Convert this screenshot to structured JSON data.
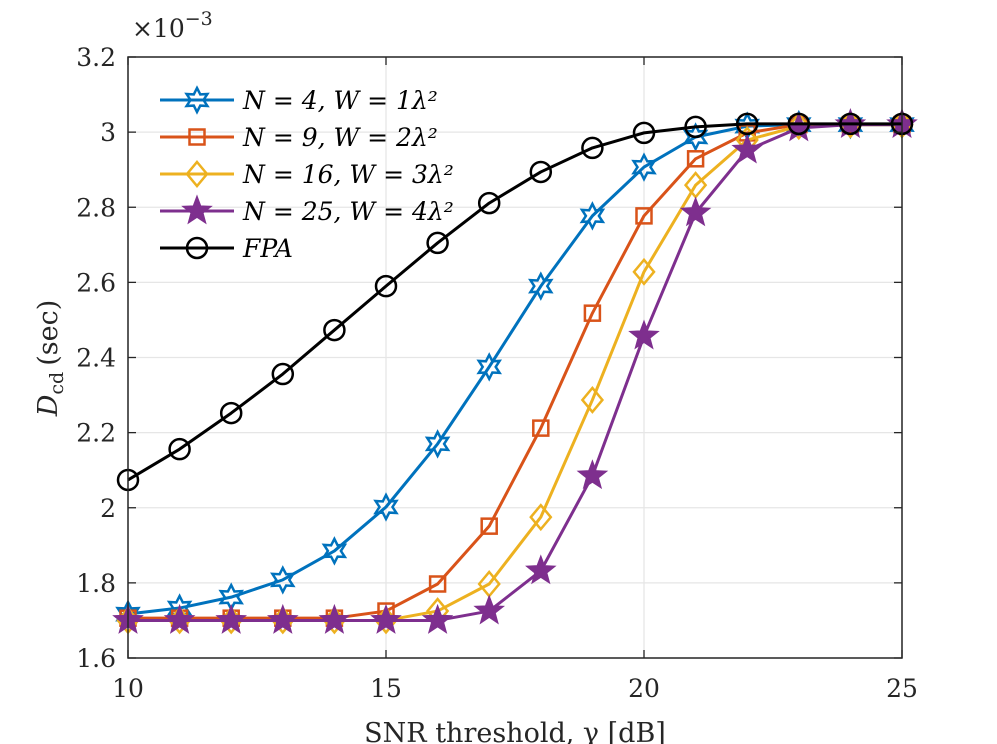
{
  "chart_data": {
    "type": "line",
    "title": "",
    "xlabel": "SNR threshold, γ [dB]",
    "ylabel": "D_cd (sec)",
    "ylabel_main": "D",
    "ylabel_sub": "cd",
    "ylabel_unit": "(sec)",
    "y_exponent_label": "×10",
    "y_exponent": "−3",
    "xlim": [
      10,
      25
    ],
    "ylim": [
      1.6,
      3.2
    ],
    "xticks": [
      10,
      15,
      20,
      25
    ],
    "yticks": [
      1.6,
      1.8,
      2,
      2.2,
      2.4,
      2.6,
      2.8,
      3,
      3.2
    ],
    "xtick_labels": [
      "10",
      "15",
      "20",
      "25"
    ],
    "ytick_labels": [
      "1.6",
      "1.8",
      "2",
      "2.2",
      "2.4",
      "2.6",
      "2.8",
      "3",
      "3.2"
    ],
    "grid": true,
    "legend_placement": "top-left",
    "x": [
      10,
      11,
      12,
      13,
      14,
      15,
      16,
      17,
      18,
      19,
      20,
      21,
      22,
      23,
      24,
      25
    ],
    "series": [
      {
        "name": "N = 4, W = 1λ²",
        "color": "#0072BD",
        "marker": "hexagram",
        "values": [
          1.717,
          1.733,
          1.762,
          1.808,
          1.885,
          2.002,
          2.17,
          2.375,
          2.59,
          2.777,
          2.907,
          2.987,
          3.016,
          3.02,
          3.02,
          3.02
        ]
      },
      {
        "name": "N = 9, W = 2λ²",
        "color": "#D95319",
        "marker": "square",
        "values": [
          1.706,
          1.706,
          1.706,
          1.706,
          1.706,
          1.725,
          1.797,
          1.951,
          2.212,
          2.518,
          2.777,
          2.929,
          2.998,
          3.02,
          3.02,
          3.02
        ]
      },
      {
        "name": "N = 16, W = 3λ²",
        "color": "#EDB120",
        "marker": "diamond",
        "values": [
          1.7,
          1.7,
          1.7,
          1.7,
          1.7,
          1.7,
          1.725,
          1.797,
          1.975,
          2.287,
          2.628,
          2.859,
          2.979,
          3.016,
          3.02,
          3.02
        ]
      },
      {
        "name": "N = 25, W = 4λ²",
        "color": "#7E2F8E",
        "marker": "pentagram",
        "values": [
          1.7,
          1.7,
          1.7,
          1.7,
          1.7,
          1.7,
          1.7,
          1.725,
          1.832,
          2.085,
          2.457,
          2.785,
          2.952,
          3.011,
          3.02,
          3.02
        ]
      },
      {
        "name": "FPA",
        "color": "#000000",
        "marker": "circle",
        "values": [
          2.074,
          2.156,
          2.252,
          2.356,
          2.473,
          2.59,
          2.705,
          2.811,
          2.894,
          2.958,
          2.998,
          3.014,
          3.022,
          3.022,
          3.022,
          3.022
        ]
      }
    ]
  }
}
